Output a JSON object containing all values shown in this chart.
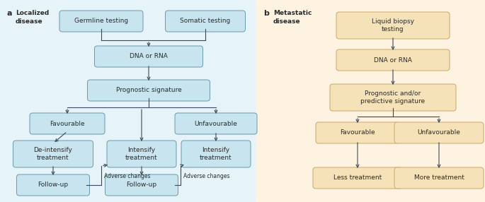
{
  "bg_color_a": "#e6f3f8",
  "bg_color_b": "#fdf3e0",
  "box_color_a": "#c8e4ef",
  "box_color_b": "#f5e2b8",
  "border_color_a": "#6a9aaa",
  "border_color_b": "#c8a86a",
  "text_color": "#2a2a2a",
  "arrow_color": "#3a4a5a",
  "panel_a_label": "a",
  "panel_b_label": "b",
  "panel_a_title": "Localized\ndisease",
  "panel_b_title": "Metastatic\ndisease"
}
